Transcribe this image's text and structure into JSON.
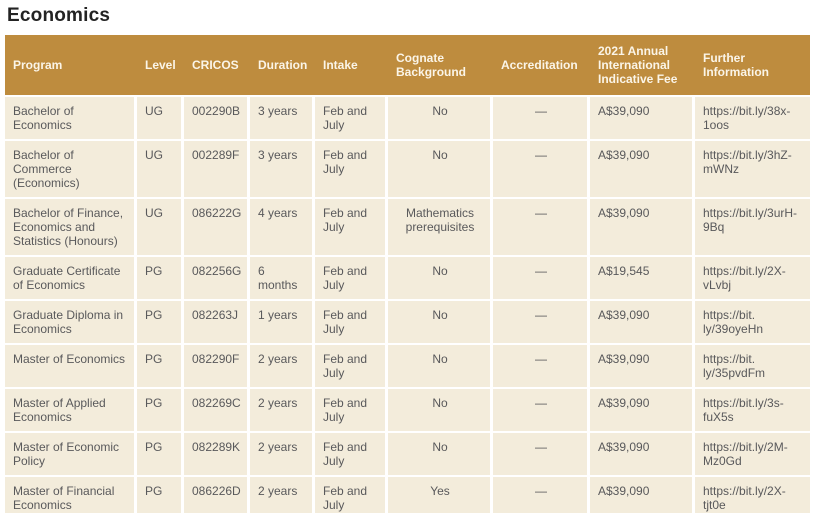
{
  "page": {
    "title": "Economics"
  },
  "colors": {
    "header_bg": "#be8c3e",
    "row_bg": "#f3ecdb",
    "header_text": "#fbf5e8",
    "body_text": "#59595b",
    "title_text": "#232323"
  },
  "table": {
    "columns": [
      {
        "key": "program",
        "label": "Program",
        "align": "left"
      },
      {
        "key": "level",
        "label": "Level",
        "align": "left"
      },
      {
        "key": "cricos",
        "label": "CRICOS",
        "align": "left"
      },
      {
        "key": "duration",
        "label": "Duration",
        "align": "left"
      },
      {
        "key": "intake",
        "label": "Intake",
        "align": "left"
      },
      {
        "key": "cognate",
        "label": "Cognate Background",
        "align": "center"
      },
      {
        "key": "accreditation",
        "label": "Accreditation",
        "align": "center"
      },
      {
        "key": "fee",
        "label": "2021 Annual International Indicative Fee",
        "align": "left"
      },
      {
        "key": "link",
        "label": "Further Information",
        "align": "left"
      }
    ],
    "rows": [
      {
        "program": "Bachelor of Economics",
        "level": "UG",
        "cricos": "002290B",
        "duration": "3 years",
        "intake": "Feb and July",
        "cognate": "No",
        "accreditation": "—",
        "fee": "A$39,090",
        "link": "https://bit.ly/38x-\n1oos"
      },
      {
        "program": "Bachelor of Commerce (Economics)",
        "level": "UG",
        "cricos": "002289F",
        "duration": "3 years",
        "intake": "Feb and July",
        "cognate": "No",
        "accreditation": "—",
        "fee": "A$39,090",
        "link": "https://bit.ly/3hZ-\nmWNz"
      },
      {
        "program": "Bachelor of Finance, Economics and Statistics (Honours)",
        "level": "UG",
        "cricos": "086222G",
        "duration": "4 years",
        "intake": "Feb and July",
        "cognate": "Mathematics prerequisites",
        "accreditation": "—",
        "fee": "A$39,090",
        "link": "https://bit.ly/3urH-\n9Bq"
      },
      {
        "program": "Graduate Certificate of Economics",
        "level": "PG",
        "cricos": "082256G",
        "duration": "6 months",
        "intake": "Feb and July",
        "cognate": "No",
        "accreditation": "—",
        "fee": "A$19,545",
        "link": "https://bit.ly/2X-\nvLvbj"
      },
      {
        "program": "Graduate Diploma in Economics",
        "level": "PG",
        "cricos": "082263J",
        "duration": "1 years",
        "intake": "Feb and July",
        "cognate": "No",
        "accreditation": "—",
        "fee": "A$39,090",
        "link": "https://bit.\nly/39oyeHn"
      },
      {
        "program": "Master of Economics",
        "level": "PG",
        "cricos": "082290F",
        "duration": "2 years",
        "intake": "Feb and July",
        "cognate": "No",
        "accreditation": "—",
        "fee": "A$39,090",
        "link": "https://bit.\nly/35pvdFm"
      },
      {
        "program": "Master of Applied Economics",
        "level": "PG",
        "cricos": "082269C",
        "duration": "2 years",
        "intake": "Feb and July",
        "cognate": "No",
        "accreditation": "—",
        "fee": "A$39,090",
        "link": "https://bit.ly/3s-\nfuX5s"
      },
      {
        "program": "Master of Economic Policy",
        "level": "PG",
        "cricos": "082289K",
        "duration": "2 years",
        "intake": "Feb and July",
        "cognate": "No",
        "accreditation": "—",
        "fee": "A$39,090",
        "link": "https://bit.ly/2M-\nMz0Gd"
      },
      {
        "program": "Master of Financial Economics",
        "level": "PG",
        "cricos": "086226D",
        "duration": "2 years",
        "intake": "Feb and July",
        "cognate": "Yes",
        "accreditation": "—",
        "fee": "A$39,090",
        "link": "https://bit.ly/2X-\ntjt0e"
      }
    ]
  }
}
